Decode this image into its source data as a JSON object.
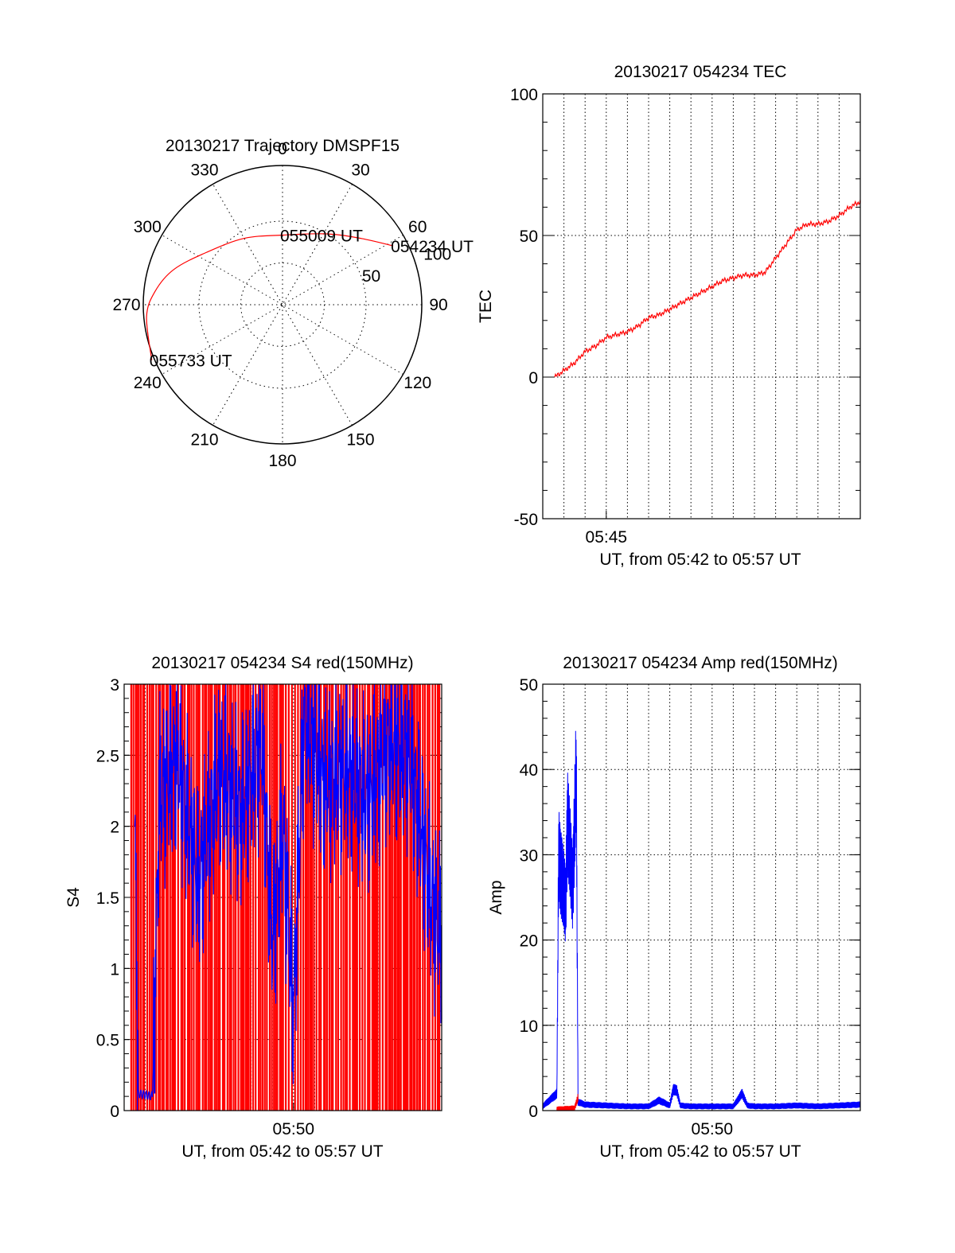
{
  "chart_data": [
    {
      "type": "polar",
      "title": "20130217 Trajectory DMSPF15",
      "azimuth_labels": [
        "0",
        "30",
        "60",
        "90",
        "120",
        "150",
        "180",
        "210",
        "240",
        "270",
        "300",
        "330"
      ],
      "radial_labels": [
        "50",
        "100"
      ],
      "radial_label_values": [
        50,
        100
      ],
      "ring_values": [
        30,
        60
      ],
      "series": [
        {
          "color": "#ff0000",
          "points": [
            {
              "az": 62,
              "zen": 90
            },
            {
              "az": 50,
              "zen": 74
            },
            {
              "az": 32,
              "zen": 60
            },
            {
              "az": 0,
              "zen": 50
            },
            {
              "az": -30,
              "zen": 55
            },
            {
              "az": -55,
              "zen": 66
            },
            {
              "az": -72,
              "zen": 82
            },
            {
              "az": -84,
              "zen": 92
            },
            {
              "az": -95,
              "zen": 98
            },
            {
              "az": -113,
              "zen": 102
            }
          ]
        }
      ],
      "annotations": [
        {
          "text": "054234 UT",
          "az": 62,
          "zen": 90
        },
        {
          "text": "055009 UT",
          "az": 0,
          "zen": 50
        },
        {
          "text": "055733 UT",
          "az": -113,
          "zen": 102
        }
      ]
    },
    {
      "type": "line",
      "title": "20130217 054234 TEC",
      "ylabel": "TEC",
      "xlabel": "UT, from 05:42 to 05:57 UT",
      "xlim": [
        "05:42",
        "05:57"
      ],
      "ylim": [
        -50,
        100
      ],
      "yticks": [
        "-50",
        "0",
        "50",
        "100"
      ],
      "xticks": [
        "05:45"
      ],
      "grid": true,
      "series": [
        {
          "color": "#ff0000",
          "x": [
            "05:42:34",
            "05:43:30",
            "05:44:00",
            "05:44:30",
            "05:45:00",
            "05:45:30",
            "05:46:00",
            "05:46:30",
            "05:47:00",
            "05:47:30",
            "05:48:00",
            "05:48:30",
            "05:49:00",
            "05:49:30",
            "05:50:00",
            "05:50:30",
            "05:51:00",
            "05:51:30",
            "05:52:00",
            "05:52:30",
            "05:53:00",
            "05:53:30",
            "05:54:00",
            "05:54:30",
            "05:55:00",
            "05:55:30",
            "05:56:00",
            "05:56:30",
            "05:57:00"
          ],
          "values": [
            0,
            5,
            9,
            11,
            14,
            15,
            16,
            18,
            21,
            22,
            24,
            26,
            28,
            30,
            32,
            34,
            35,
            36,
            36,
            37,
            42,
            47,
            52,
            54,
            54,
            55,
            57,
            60,
            62
          ]
        }
      ]
    },
    {
      "type": "line",
      "title": "20130217 054234 S4 red(150MHz)",
      "ylabel": "S4",
      "xlabel": "UT, from 05:42 to 05:57 UT",
      "xlim": [
        "05:42",
        "05:57"
      ],
      "ylim": [
        0,
        3
      ],
      "yticks": [
        "0",
        "0.5",
        "1",
        "1.5",
        "2",
        "2.5",
        "3"
      ],
      "xticks": [
        "05:50"
      ],
      "grid": true,
      "series": [
        {
          "color": "#0000ff",
          "x": [
            "05:42:30",
            "05:42:40",
            "05:43:20",
            "05:43:40",
            "05:44:30",
            "05:45:30",
            "05:46:30",
            "05:47:30",
            "05:48:30",
            "05:49:00",
            "05:49:30",
            "05:50:00",
            "05:50:30",
            "05:51:30",
            "05:52:30",
            "05:53:30",
            "05:54:30",
            "05:55:30",
            "05:56:30",
            "05:57:00"
          ],
          "values": [
            2.0,
            0.12,
            0.1,
            2.2,
            2.5,
            1.6,
            2.4,
            2.1,
            2.6,
            1.2,
            2.0,
            0.7,
            2.8,
            2.3,
            2.4,
            2.2,
            2.6,
            2.5,
            1.5,
            1.2
          ]
        }
      ]
    },
    {
      "type": "line",
      "title": "20130217 054234 Amp red(150MHz)",
      "ylabel": "Amp",
      "xlabel": "UT, from 05:42 to 05:57 UT",
      "xlim": [
        "05:42",
        "05:57"
      ],
      "ylim": [
        0,
        50
      ],
      "yticks": [
        "0",
        "10",
        "20",
        "30",
        "40",
        "50"
      ],
      "xticks": [
        "05:50"
      ],
      "grid": true,
      "series": [
        {
          "color": "#0000ff",
          "x": [
            "05:42:00",
            "05:42:40",
            "05:42:45",
            "05:43:05",
            "05:43:10",
            "05:43:25",
            "05:43:35",
            "05:43:40",
            "05:44:00",
            "05:45:00",
            "05:46:00",
            "05:47:00",
            "05:47:30",
            "05:48:00",
            "05:48:10",
            "05:48:20",
            "05:48:30",
            "05:49:00",
            "05:50:00",
            "05:51:00",
            "05:51:25",
            "05:51:40",
            "05:52:00",
            "05:53:00",
            "05:54:00",
            "05:55:00",
            "05:56:00",
            "05:57:00"
          ],
          "values": [
            0.5,
            2,
            30,
            24,
            34,
            26,
            40,
            1.0,
            0.7,
            0.6,
            0.5,
            0.5,
            1.2,
            0.6,
            2.5,
            2.3,
            0.6,
            0.5,
            0.5,
            0.5,
            2.0,
            0.6,
            0.5,
            0.5,
            0.6,
            0.5,
            0.6,
            0.7
          ]
        },
        {
          "color": "#ff0000",
          "x": [
            "05:42:40",
            "05:43:30",
            "05:43:40"
          ],
          "values": [
            0.2,
            0.3,
            1.5
          ]
        }
      ]
    }
  ]
}
